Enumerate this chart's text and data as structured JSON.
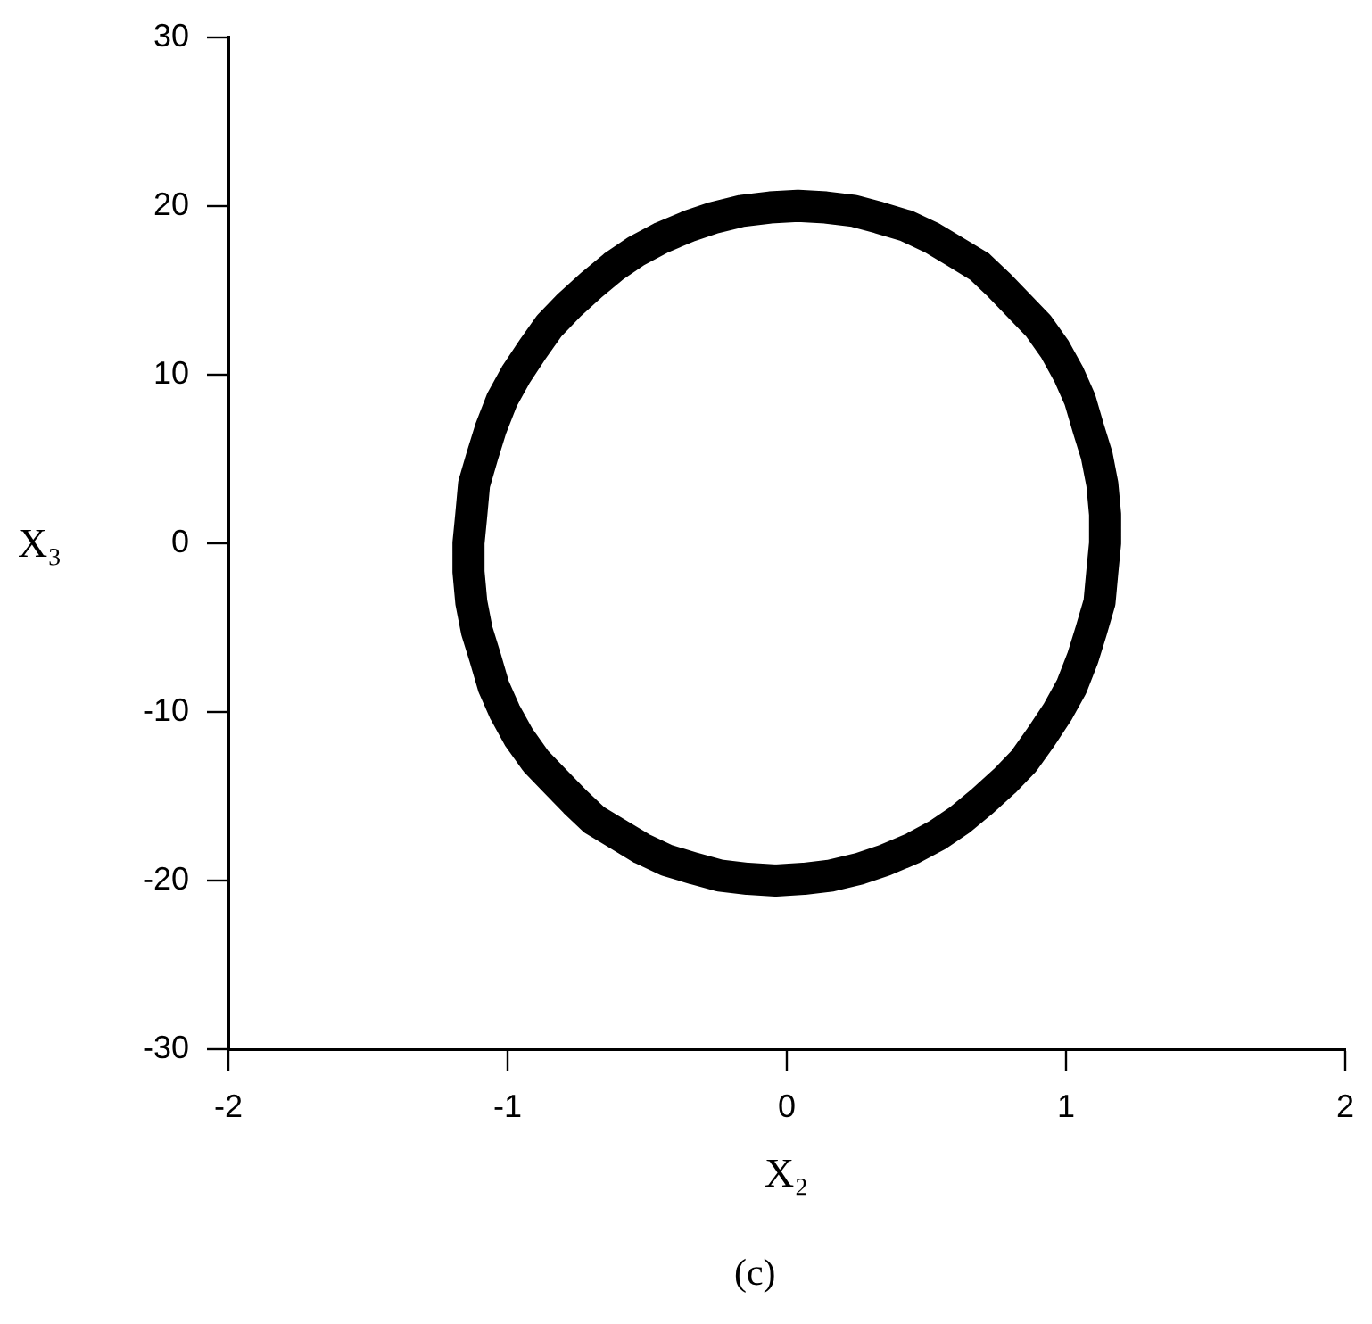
{
  "chart_data": {
    "type": "line",
    "xlabel": "X₂",
    "ylabel": "X₃",
    "annotations": [
      "(c)"
    ],
    "x": [
      -1.14,
      -1.13,
      -1.12,
      -1.09,
      -1.06,
      -1.02,
      -0.97,
      -0.91,
      -0.85,
      -0.78,
      -0.7,
      -0.62,
      -0.54,
      -0.45,
      -0.35,
      -0.26,
      -0.16,
      -0.06,
      0.04,
      0.14,
      0.24,
      0.33,
      0.43,
      0.52,
      0.6,
      0.69,
      0.76,
      0.83,
      0.9,
      0.96,
      1.01,
      1.05,
      1.08,
      1.11,
      1.13,
      1.14,
      1.14,
      null,
      -1.14,
      -1.14,
      -1.13,
      -1.11,
      -1.08,
      -1.05,
      -1.01,
      -0.96,
      -0.9,
      -0.83,
      -0.76,
      -0.69,
      -0.6,
      -0.52,
      -0.43,
      -0.33,
      -0.24,
      -0.14,
      -0.04,
      0.06,
      0.16,
      0.26,
      0.35,
      0.45,
      0.54,
      0.62,
      0.7,
      0.78,
      0.85,
      0.91,
      0.97,
      1.02,
      1.06,
      1.09,
      1.12,
      1.13,
      1.14
    ],
    "values": [
      0,
      1.7,
      3.5,
      5.2,
      6.8,
      8.5,
      10.0,
      11.5,
      12.9,
      14.1,
      15.3,
      16.4,
      17.3,
      18.1,
      18.8,
      19.3,
      19.7,
      19.9,
      20.0,
      19.9,
      19.7,
      19.3,
      18.8,
      18.1,
      17.3,
      16.4,
      15.3,
      14.1,
      12.9,
      11.5,
      10.0,
      8.5,
      6.8,
      5.2,
      3.5,
      1.7,
      0,
      null,
      0,
      -1.7,
      -3.5,
      -5.2,
      -6.8,
      -8.5,
      -10.0,
      -11.5,
      -12.9,
      -14.1,
      -15.3,
      -16.4,
      -17.3,
      -18.1,
      -18.8,
      -19.3,
      -19.7,
      -19.9,
      -20.0,
      -19.9,
      -19.7,
      -19.3,
      -18.8,
      -18.1,
      -17.3,
      -16.4,
      -15.3,
      -14.1,
      -12.9,
      -11.5,
      -10.0,
      -8.5,
      -6.8,
      -5.2,
      -3.5,
      -1.7,
      0
    ],
    "color": "#000000",
    "marker": "none",
    "xlim": [
      -2,
      2
    ],
    "xticks": [
      -2,
      -1,
      0,
      1,
      2
    ],
    "ylim": [
      -30,
      30
    ],
    "yticks": [
      -30,
      -20,
      -10,
      0,
      10,
      20,
      30
    ]
  }
}
